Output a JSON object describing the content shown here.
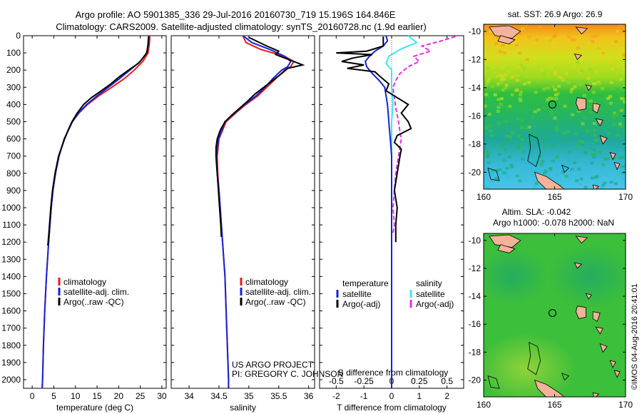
{
  "header": {
    "line1": "Argo profile: AO 5901385_336 29-Jul-2016 20160730_719 15.196S 164.846E",
    "line2": "Climatology: CARS2009. Satellite-adjusted climatology: synTS_20160728.nc (1.9d earlier)"
  },
  "colors": {
    "climatology": "#e8191c",
    "satellite": "#1423d6",
    "argo": "#000000",
    "sal_satellite": "#3fe6f0",
    "sal_argo": "#e62ee0",
    "land": "#f2b39a"
  },
  "depth_axis": {
    "ticks": [
      "0",
      "100",
      "200",
      "300",
      "400",
      "500",
      "600",
      "700",
      "800",
      "900",
      "1000",
      "1100",
      "1200",
      "1300",
      "1400",
      "1500",
      "1600",
      "1700",
      "1800",
      "1900",
      "2000"
    ],
    "range": [
      0,
      2050
    ]
  },
  "chart_data": [
    {
      "type": "line",
      "xlabel": "temperature (deg C)",
      "xlim": [
        -2,
        31
      ],
      "xticks": [
        "0",
        "5",
        "10",
        "15",
        "20",
        "25",
        "30"
      ],
      "xtick_values": [
        0,
        5,
        10,
        15,
        20,
        25,
        30
      ],
      "legend": [
        "climatology",
        "satellite-adj. clim.",
        "Argo(..raw -QC)"
      ],
      "series": [
        {
          "name": "climatology",
          "color": "#e8191c",
          "depth": [
            0,
            50,
            100,
            150,
            200,
            250,
            300,
            350,
            400,
            450,
            500,
            600,
            700,
            800,
            900,
            1000,
            1200,
            1400,
            1600,
            1800,
            2000,
            2050
          ],
          "values": [
            27.2,
            27.1,
            26.8,
            25.6,
            23.6,
            21.3,
            18.4,
            15.4,
            12.8,
            10.8,
            9.3,
            7.4,
            6.2,
            5.4,
            4.8,
            4.4,
            3.8,
            3.3,
            2.9,
            2.6,
            2.4,
            2.3
          ]
        },
        {
          "name": "satellite-adj. clim.",
          "color": "#1423d6",
          "depth": [
            0,
            50,
            100,
            150,
            200,
            250,
            300,
            350,
            400,
            450,
            500,
            600,
            700,
            800,
            900,
            1000,
            1200,
            1400,
            1600,
            1800,
            2000,
            2050
          ],
          "values": [
            27.0,
            26.9,
            26.5,
            25.0,
            22.6,
            20.2,
            17.6,
            15.0,
            12.6,
            10.7,
            9.3,
            7.4,
            6.2,
            5.4,
            4.8,
            4.4,
            3.8,
            3.3,
            2.9,
            2.6,
            2.4,
            2.3
          ]
        },
        {
          "name": "Argo(..raw -QC)",
          "color": "#000000",
          "depth": [
            5,
            50,
            100,
            140,
            160,
            200,
            240,
            280,
            320,
            360,
            400,
            450,
            500,
            550,
            600,
            700,
            800,
            900,
            1000,
            1100,
            1200,
            1220
          ],
          "values": [
            26.9,
            26.8,
            26.5,
            25.3,
            24.6,
            22.3,
            20.1,
            18.2,
            16.0,
            13.7,
            11.9,
            10.4,
            9.2,
            8.3,
            7.5,
            6.1,
            5.3,
            4.7,
            4.3,
            4.0,
            3.7,
            3.6
          ]
        }
      ]
    },
    {
      "type": "line",
      "xlabel": "salinity",
      "xlim": [
        33.7,
        36.1
      ],
      "xticks": [
        "34",
        "34.5",
        "35",
        "35.5",
        "36"
      ],
      "xtick_values": [
        34,
        34.5,
        35,
        35.5,
        36
      ],
      "legend": [
        "climatology",
        "satellite-adj. clim.",
        "Argo(..raw -QC)"
      ],
      "series": [
        {
          "name": "climatology",
          "color": "#e8191c",
          "depth": [
            0,
            40,
            80,
            120,
            150,
            180,
            200,
            250,
            300,
            350,
            400,
            450,
            500,
            600,
            700,
            800,
            900,
            1000,
            1200,
            1400,
            1600,
            1800,
            2000,
            2050
          ],
          "values": [
            34.9,
            34.95,
            35.2,
            35.6,
            35.75,
            35.7,
            35.6,
            35.45,
            35.3,
            35.15,
            34.95,
            34.78,
            34.62,
            34.5,
            34.47,
            34.48,
            34.5,
            34.52,
            34.56,
            34.6,
            34.62,
            34.64,
            34.66,
            34.66
          ]
        },
        {
          "name": "satellite-adj. clim.",
          "color": "#1423d6",
          "depth": [
            0,
            40,
            80,
            120,
            150,
            180,
            200,
            250,
            300,
            350,
            400,
            450,
            500,
            600,
            700,
            800,
            900,
            1000,
            1200,
            1400,
            1600,
            1800,
            2000,
            2050
          ],
          "values": [
            34.9,
            35.05,
            35.35,
            35.6,
            35.7,
            35.65,
            35.55,
            35.4,
            35.27,
            35.12,
            34.93,
            34.76,
            34.6,
            34.49,
            34.46,
            34.47,
            34.5,
            34.52,
            34.56,
            34.6,
            34.62,
            34.64,
            34.66,
            34.66
          ]
        },
        {
          "name": "Argo(..raw -QC)",
          "color": "#000000",
          "depth": [
            10,
            60,
            90,
            110,
            130,
            150,
            170,
            190,
            220,
            260,
            300,
            340,
            380,
            420,
            460,
            500,
            550,
            600,
            650,
            700,
            750,
            800,
            900,
            1000,
            1100,
            1170
          ],
          "values": [
            35.0,
            35.3,
            35.5,
            35.45,
            35.6,
            35.75,
            35.9,
            35.65,
            35.55,
            35.4,
            35.25,
            35.1,
            34.98,
            34.85,
            34.72,
            34.6,
            34.52,
            34.47,
            34.45,
            34.45,
            34.46,
            34.47,
            34.49,
            34.51,
            34.53,
            34.54
          ]
        }
      ]
    },
    {
      "type": "line",
      "xlabel": "T difference from climatology",
      "xlabel2": "S difference from climatology",
      "xlim": [
        -2.6,
        2.6
      ],
      "xticks": [
        "-2",
        "-1",
        "0",
        "1",
        "2"
      ],
      "xtick_values": [
        -2,
        -1,
        0,
        1,
        2
      ],
      "xticks2": [
        "-0.5",
        "-0.25",
        "0",
        "0.25",
        "0.5"
      ],
      "xtick2_values": [
        -2,
        -1,
        0,
        1,
        2
      ],
      "legend_temperature": {
        "title": "temperature",
        "items": [
          "satellite",
          "Argo(-adj)"
        ]
      },
      "legend_salinity": {
        "title": "salinity",
        "items": [
          "satellite",
          "Argo(-adj)"
        ]
      },
      "series": [
        {
          "name": "satellite",
          "color": "#1423d6",
          "depth": [
            0,
            30,
            60,
            90,
            120,
            150,
            180,
            220,
            260,
            300,
            400,
            500,
            600,
            700,
            800,
            1000,
            1200,
            1500,
            2050
          ],
          "values": [
            -0.2,
            -0.15,
            -0.3,
            -0.6,
            -0.8,
            -0.95,
            -0.9,
            -0.7,
            -0.45,
            -0.25,
            -0.15,
            -0.1,
            -0.05,
            0,
            0,
            0,
            0,
            0,
            0
          ]
        },
        {
          "name": "Argo(-adj)",
          "color": "#000000",
          "depth": [
            5,
            60,
            90,
            100,
            110,
            130,
            150,
            170,
            190,
            210,
            240,
            280,
            320,
            360,
            400,
            450,
            500,
            540,
            580,
            620,
            660,
            700,
            800,
            900,
            1000,
            1100,
            1200
          ],
          "values": [
            -0.3,
            -0.3,
            -0.9,
            -2.0,
            -0.7,
            -1.4,
            -1.8,
            -1.0,
            -1.6,
            -0.6,
            -0.4,
            -0.1,
            -0.2,
            0.2,
            0.6,
            0.35,
            0.6,
            0.7,
            0.2,
            0.1,
            0.35,
            0.3,
            0.2,
            0.1,
            0.2,
            0.15,
            0.15
          ]
        },
        {
          "name": "satellite",
          "color": "#3fe6f0",
          "depth": [
            0,
            40,
            80,
            120,
            160,
            200,
            240,
            300,
            400,
            500,
            600,
            800,
            1000,
            1500,
            2050
          ],
          "values": [
            0.6,
            0.9,
            0.3,
            -0.1,
            -0.2,
            0.0,
            0.0,
            0.0,
            0.05,
            0.0,
            0.0,
            0.0,
            0.0,
            0.0,
            0.0
          ]
        },
        {
          "name": "Argo(-adj)",
          "color": "#e62ee0",
          "depth": [
            5,
            30,
            60,
            90,
            120,
            150,
            180,
            220,
            260,
            300,
            360,
            420,
            500,
            560,
            600,
            700,
            800,
            900,
            1000,
            1100,
            1150
          ],
          "values": [
            2.3,
            1.8,
            1.1,
            1.4,
            0.8,
            1.0,
            0.6,
            0.3,
            0.15,
            0.05,
            0.1,
            0.15,
            0.25,
            0.3,
            0.35,
            0.25,
            0.15,
            0.1,
            0.05,
            0.1,
            0.05
          ]
        }
      ]
    },
    {
      "type": "heatmap",
      "title": "sat. SST: 26.9 Argo: 26.9",
      "xlim": [
        160,
        170
      ],
      "ylim": [
        -21.2,
        -9.5
      ],
      "xticks": [
        "160",
        "165",
        "170"
      ],
      "xtick_values": [
        160,
        165,
        170
      ],
      "yticks": [
        "-10",
        "-12",
        "-14",
        "-16",
        "-18",
        "-20"
      ],
      "ytick_values": [
        -10,
        -12,
        -14,
        -16,
        -18,
        -20
      ],
      "marker": {
        "lon": 164.846,
        "lat": -15.196
      }
    },
    {
      "type": "heatmap",
      "title": "Altim. SLA: -0.042",
      "subtitle": "Argo h1000: -0.078 h2000: NaN",
      "xlim": [
        160,
        170
      ],
      "ylim": [
        -21.2,
        -9.5
      ],
      "xticks": [
        "160",
        "165",
        "170"
      ],
      "xtick_values": [
        160,
        165,
        170
      ],
      "yticks": [
        "-10",
        "-12",
        "-14",
        "-16",
        "-18",
        "-20"
      ],
      "ytick_values": [
        -10,
        -12,
        -14,
        -16,
        -18,
        -20
      ],
      "marker": {
        "lon": 164.846,
        "lat": -15.196
      }
    }
  ],
  "credits": {
    "line1": "US ARGO PROJECT",
    "line2": "PI: GREGORY C. JOHNSON"
  },
  "stamp": "©IMOS 04-Aug-2016 20:41:01"
}
